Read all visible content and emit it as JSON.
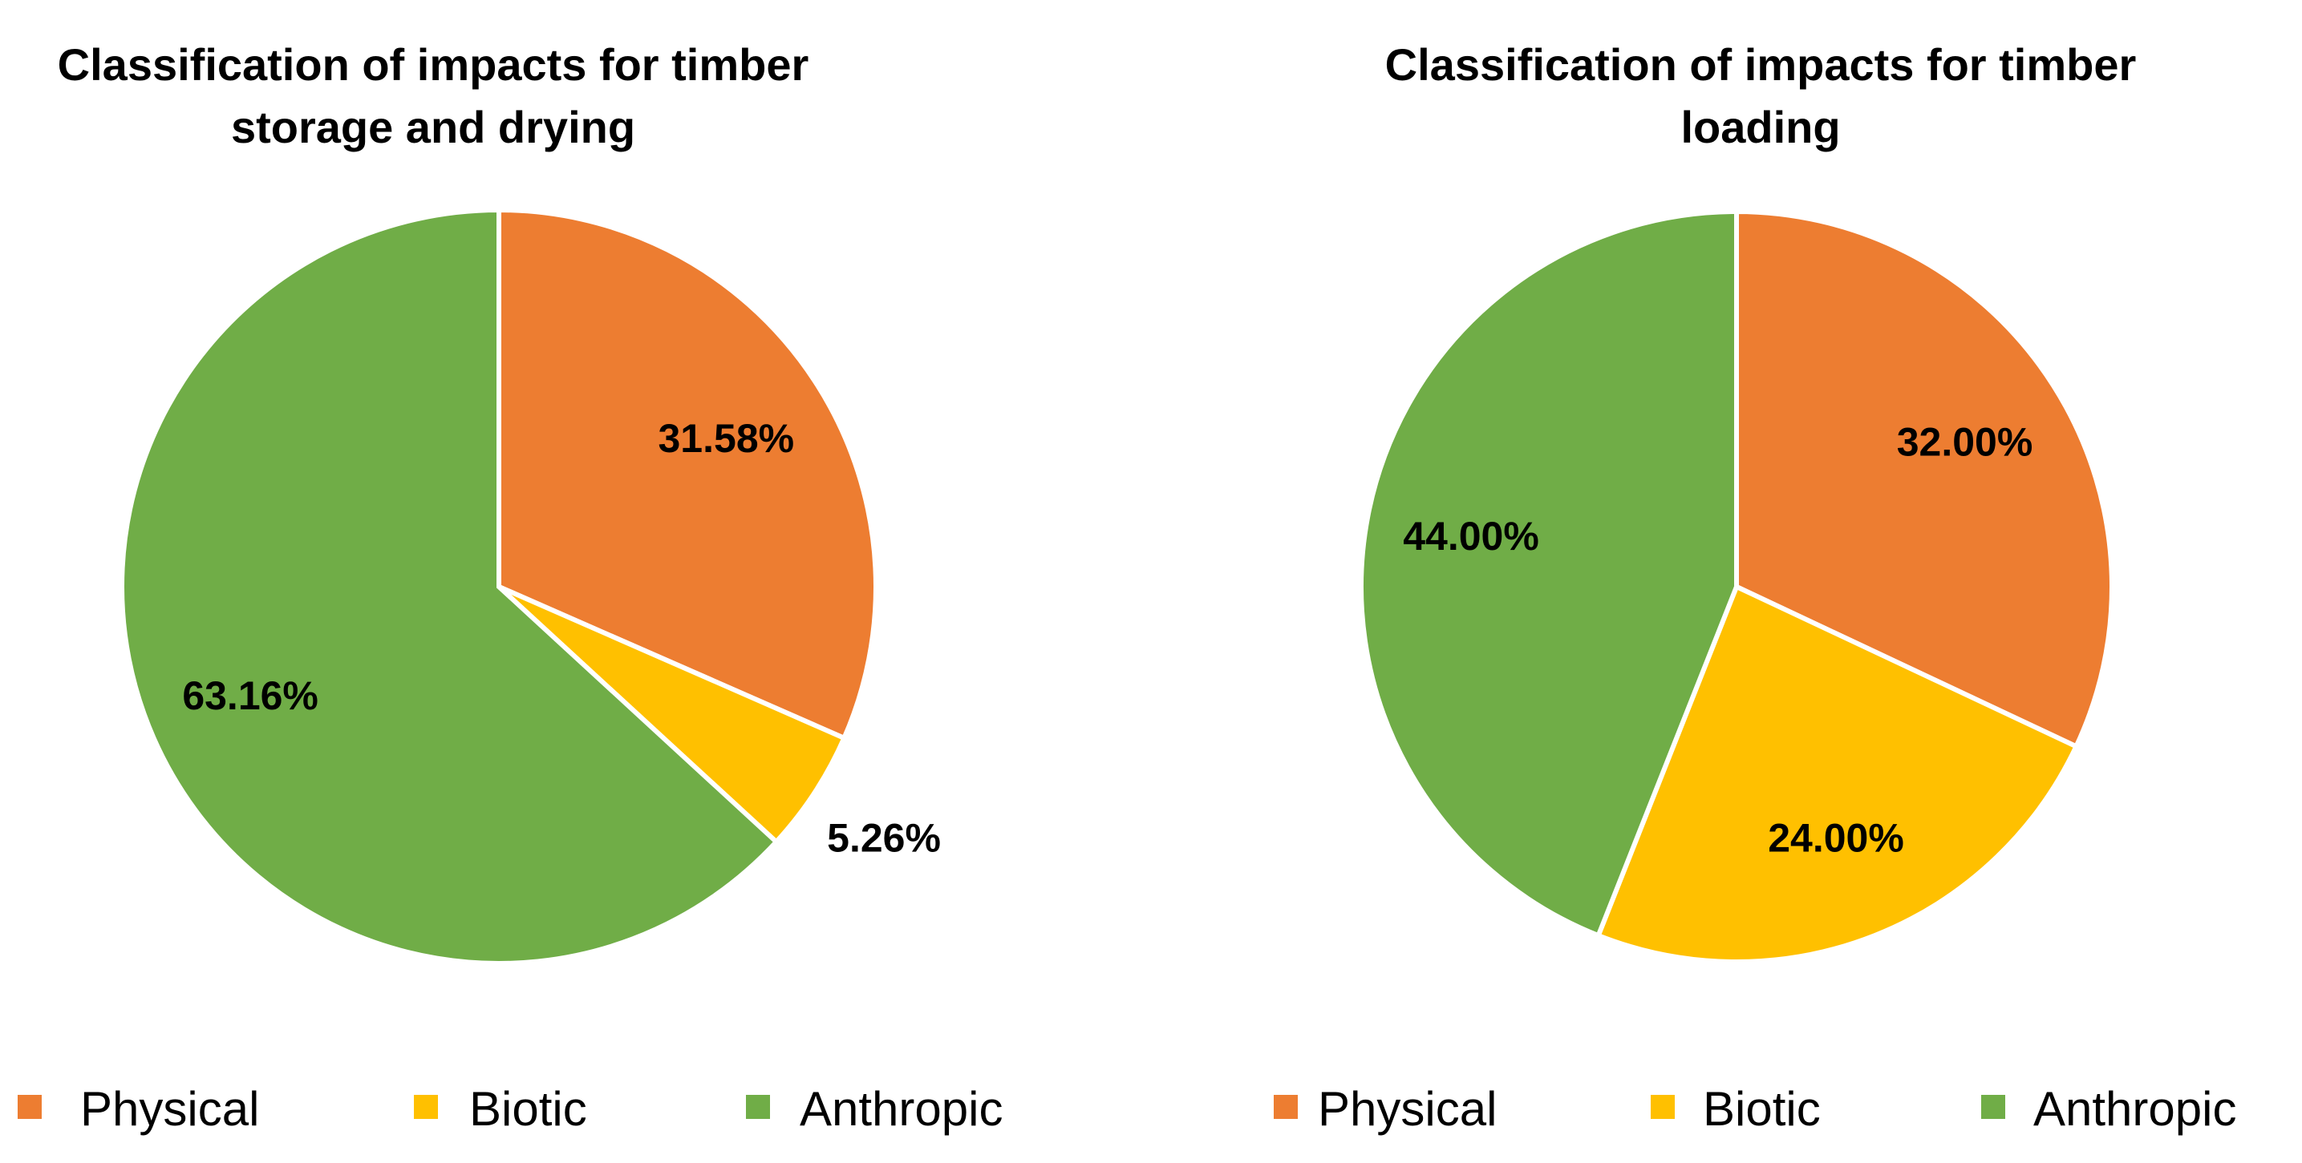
{
  "chart_data": [
    {
      "type": "pie",
      "title_lines": [
        "Classification of impacts for timber",
        "storage and drying"
      ],
      "categories": [
        "Physical",
        "Biotic",
        "Anthropic"
      ],
      "values": [
        31.58,
        5.26,
        63.16
      ],
      "labels": [
        "31.58%",
        "5.26%",
        "63.16%"
      ],
      "colors": [
        "#ED7D31",
        "#FFC000",
        "#70AD47"
      ],
      "legend_position": "bottom"
    },
    {
      "type": "pie",
      "title_lines": [
        "Classification of impacts for timber",
        "loading"
      ],
      "categories": [
        "Physical",
        "Biotic",
        "Anthropic"
      ],
      "values": [
        32.0,
        24.0,
        44.0
      ],
      "labels": [
        "32.00%",
        "24.00%",
        "44.00%"
      ],
      "colors": [
        "#ED7D31",
        "#FFC000",
        "#70AD47"
      ],
      "legend_position": "bottom"
    }
  ]
}
